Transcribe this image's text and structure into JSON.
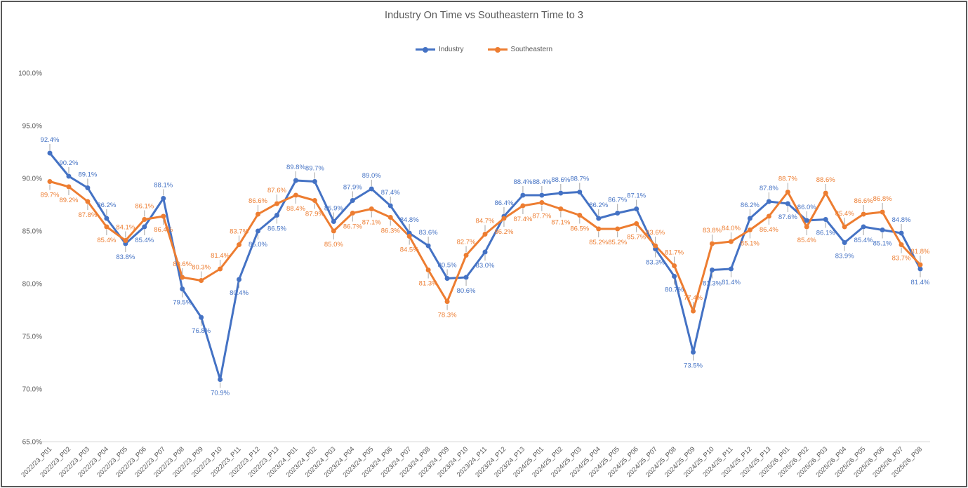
{
  "chart_data": {
    "type": "line",
    "title": "Industry On Time vs Southeastern Time to 3",
    "xlabel": "",
    "ylabel": "",
    "ylim": [
      65,
      100
    ],
    "yticks": [
      "65.0%",
      "70.0%",
      "75.0%",
      "80.0%",
      "85.0%",
      "90.0%",
      "95.0%",
      "100.0%"
    ],
    "grid": false,
    "legend_position": "top",
    "categories": [
      "2022/23_P01",
      "2022/23_P02",
      "2022/23_P03",
      "2022/23_P04",
      "2022/23_P05",
      "2022/23_P06",
      "2022/23_P07",
      "2022/23_P08",
      "2022/23_P09",
      "2022/23_P10",
      "2022/23_P11",
      "2022/23_P12",
      "2022/23_P13",
      "2023/24_P01",
      "2023/24_P02",
      "2023/24_P03",
      "2023/24_P04",
      "2023/24_P05",
      "2023/24_P06",
      "2023/24_P07",
      "2023/24_P08",
      "2023/24_P09",
      "2023/24_P10",
      "2023/24_P11",
      "2023/24_P12",
      "2023/24_P13",
      "2024/25_P01",
      "2024/25_P02",
      "2024/25_P03",
      "2024/25_P04",
      "2024/25_P05",
      "2024/25_P06",
      "2024/25_P07",
      "2024/25_P08",
      "2024/25_P09",
      "2024/25_P10",
      "2024/25_P11",
      "2024/25_P12",
      "2024/25_P13",
      "2025/26_P01",
      "2025/26_P02",
      "2025/26_P03",
      "2025/26_P04",
      "2025/26_P05",
      "2025/26_P06",
      "2025/26_P07",
      "2025/26_P08"
    ],
    "series": [
      {
        "name": "Industry",
        "color": "#4472C4",
        "values": [
          92.4,
          90.2,
          89.1,
          86.2,
          83.8,
          85.4,
          88.1,
          79.5,
          76.8,
          70.9,
          80.4,
          85.0,
          86.5,
          89.8,
          89.7,
          85.9,
          87.9,
          89.0,
          87.4,
          84.8,
          83.6,
          80.5,
          80.6,
          83.0,
          86.4,
          88.4,
          88.4,
          88.6,
          88.7,
          86.2,
          86.7,
          87.1,
          83.3,
          80.7,
          73.5,
          81.3,
          81.4,
          86.2,
          87.8,
          87.6,
          86.0,
          86.1,
          83.9,
          85.4,
          85.1,
          84.8,
          81.4
        ]
      },
      {
        "name": "Southeastern",
        "color": "#ED7D31",
        "values": [
          89.7,
          89.2,
          87.8,
          85.4,
          84.1,
          86.1,
          86.4,
          80.6,
          80.3,
          81.4,
          83.7,
          86.6,
          87.6,
          88.4,
          87.9,
          85.0,
          86.7,
          87.1,
          86.3,
          84.5,
          81.3,
          78.3,
          82.7,
          84.7,
          86.2,
          87.4,
          87.7,
          87.1,
          86.5,
          85.2,
          85.2,
          85.7,
          83.6,
          81.7,
          77.4,
          83.8,
          84.0,
          85.1,
          86.4,
          88.7,
          85.4,
          88.6,
          85.4,
          86.6,
          86.8,
          83.7,
          81.8
        ]
      }
    ]
  }
}
